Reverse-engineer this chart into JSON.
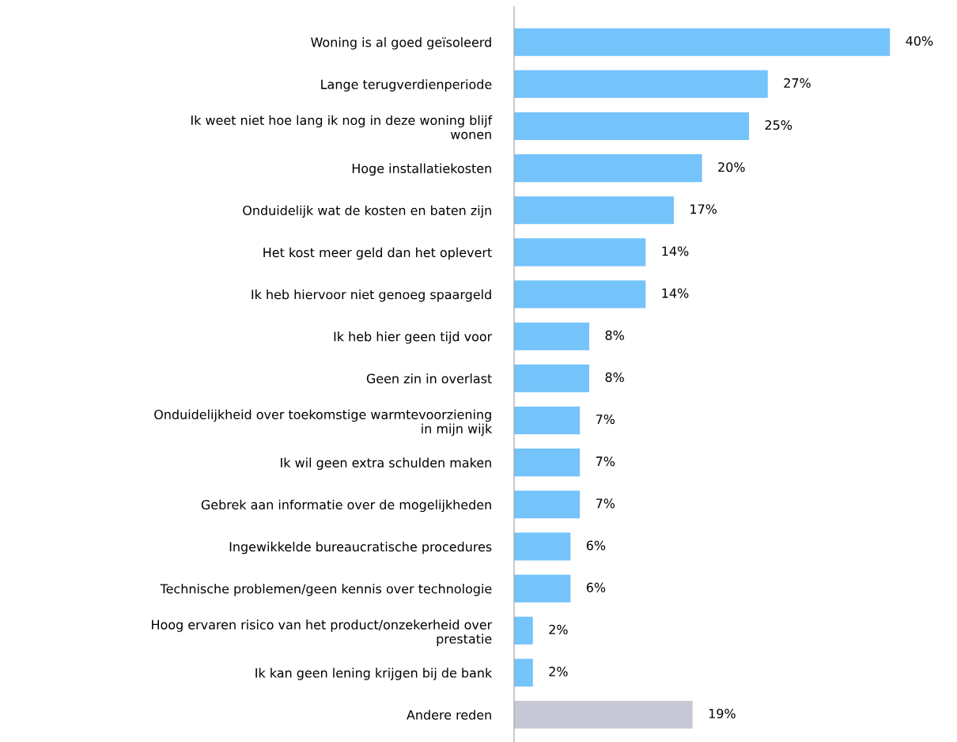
{
  "chart_data": {
    "type": "bar",
    "orientation": "horizontal",
    "categories": [
      "Woning is al goed geïsoleerd",
      "Lange terugverdienperiode",
      "Ik weet niet hoe lang ik nog in deze woning blijf\nwonen",
      "Hoge installatiekosten",
      "Onduidelijk wat de kosten en baten zijn",
      "Het kost meer geld dan het oplevert",
      "Ik heb hiervoor niet genoeg spaargeld",
      "Ik heb hier geen tijd voor",
      "Geen zin in overlast",
      "Onduidelijkheid over toekomstige warmtevoorziening\nin mijn wijk",
      "Ik wil geen extra schulden maken",
      "Gebrek aan informatie over de mogelijkheden",
      "Ingewikkelde bureaucratische procedures",
      "Technische problemen/geen kennis over technologie",
      "Hoog ervaren risico van het product/onzekerheid over\nprestatie",
      "Ik kan geen lening krijgen bij de bank",
      "Andere reden"
    ],
    "values": [
      40,
      27,
      25,
      20,
      17,
      14,
      14,
      8,
      8,
      7,
      7,
      7,
      6,
      6,
      2,
      2,
      19
    ],
    "value_labels": [
      "40%",
      "27%",
      "25%",
      "20%",
      "17%",
      "14%",
      "14%",
      "8%",
      "8%",
      "7%",
      "7%",
      "7%",
      "6%",
      "6%",
      "2%",
      "2%",
      "19%"
    ],
    "colors": [
      "#74c3fb",
      "#74c3fb",
      "#74c3fb",
      "#74c3fb",
      "#74c3fb",
      "#74c3fb",
      "#74c3fb",
      "#74c3fb",
      "#74c3fb",
      "#74c3fb",
      "#74c3fb",
      "#74c3fb",
      "#74c3fb",
      "#74c3fb",
      "#74c3fb",
      "#74c3fb",
      "#c8c9d6"
    ]
  }
}
